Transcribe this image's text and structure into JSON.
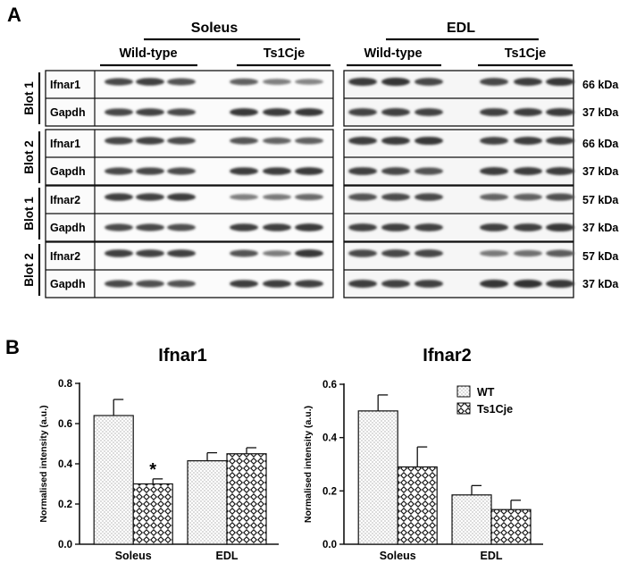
{
  "panel_a": {
    "letter": "A",
    "groups": [
      {
        "name": "Soleus",
        "subgroups": [
          "Wild-type",
          "Ts1Cje"
        ]
      },
      {
        "name": "EDL",
        "subgroups": [
          "Wild-type",
          "Ts1Cje"
        ]
      }
    ],
    "blocks": [
      {
        "blot": "Blot 1",
        "rows": [
          {
            "protein": "Ifnar1",
            "kda": "66 kDa"
          },
          {
            "protein": "Gapdh",
            "kda": "37 kDa"
          }
        ]
      },
      {
        "blot": "Blot 2",
        "rows": [
          {
            "protein": "Ifnar1",
            "kda": "66 kDa"
          },
          {
            "protein": "Gapdh",
            "kda": "37 kDa"
          }
        ]
      },
      {
        "blot": "Blot 1",
        "rows": [
          {
            "protein": "Ifnar2",
            "kda": "57 kDa"
          },
          {
            "protein": "Gapdh",
            "kda": "37 kDa"
          }
        ]
      },
      {
        "blot": "Blot 2",
        "rows": [
          {
            "protein": "Ifnar2",
            "kda": "57 kDa"
          },
          {
            "protein": "Gapdh",
            "kda": "37 kDa"
          }
        ]
      }
    ],
    "band_intensity": [
      [
        [
          0.78,
          0.85,
          0.72,
          0.62,
          0.42,
          0.38
        ],
        [
          0.8,
          0.82,
          0.78,
          0.9,
          0.88,
          0.9
        ]
      ],
      [
        [
          0.8,
          0.82,
          0.76,
          0.7,
          0.6,
          0.62
        ],
        [
          0.78,
          0.8,
          0.76,
          0.86,
          0.86,
          0.88
        ]
      ],
      [
        [
          0.85,
          0.82,
          0.86,
          0.42,
          0.46,
          0.56
        ],
        [
          0.76,
          0.78,
          0.74,
          0.85,
          0.85,
          0.88
        ]
      ],
      [
        [
          0.85,
          0.82,
          0.84,
          0.72,
          0.45,
          0.9
        ],
        [
          0.78,
          0.74,
          0.72,
          0.86,
          0.86,
          0.84
        ]
      ]
    ],
    "band_intensity_edl": [
      [
        [
          0.88,
          0.92,
          0.8,
          0.8,
          0.86,
          0.9
        ],
        [
          0.82,
          0.85,
          0.82,
          0.84,
          0.86,
          0.88
        ]
      ],
      [
        [
          0.86,
          0.88,
          0.9,
          0.82,
          0.86,
          0.86
        ],
        [
          0.84,
          0.8,
          0.72,
          0.86,
          0.86,
          0.86
        ]
      ],
      [
        [
          0.72,
          0.76,
          0.78,
          0.6,
          0.62,
          0.74
        ],
        [
          0.82,
          0.84,
          0.82,
          0.84,
          0.84,
          0.9
        ]
      ],
      [
        [
          0.78,
          0.8,
          0.8,
          0.46,
          0.52,
          0.66
        ],
        [
          0.86,
          0.84,
          0.84,
          0.92,
          0.94,
          0.9
        ]
      ]
    ]
  },
  "panel_b": {
    "letter": "B",
    "legend": [
      {
        "label": "WT",
        "pattern": "dots"
      },
      {
        "label": "Ts1Cje",
        "pattern": "checker"
      }
    ],
    "significance_marker": "*"
  },
  "chart_data": [
    {
      "type": "bar",
      "title": "Ifnar1",
      "xlabel": "",
      "ylabel": "Normalised intensity  (a.u.)",
      "categories": [
        "Soleus",
        "EDL"
      ],
      "ylim": [
        0,
        0.8
      ],
      "yticks": [
        "0.0",
        "0.2",
        "0.4",
        "0.6",
        "0.8"
      ],
      "series": [
        {
          "name": "WT",
          "values": [
            0.64,
            0.415
          ],
          "errors": [
            0.08,
            0.04
          ]
        },
        {
          "name": "Ts1Cje",
          "values": [
            0.3,
            0.45
          ],
          "errors": [
            0.025,
            0.03
          ]
        }
      ],
      "annotations": [
        {
          "category": "Soleus",
          "series": "Ts1Cje",
          "text": "*"
        }
      ]
    },
    {
      "type": "bar",
      "title": "Ifnar2",
      "xlabel": "",
      "ylabel": "Normalised intensity  (a.u.)",
      "categories": [
        "Soleus",
        "EDL"
      ],
      "ylim": [
        0,
        0.6
      ],
      "yticks": [
        "0.0",
        "0.2",
        "0.4",
        "0.6"
      ],
      "series": [
        {
          "name": "WT",
          "values": [
            0.5,
            0.185
          ],
          "errors": [
            0.06,
            0.035
          ]
        },
        {
          "name": "Ts1Cje",
          "values": [
            0.29,
            0.13
          ],
          "errors": [
            0.075,
            0.035
          ]
        }
      ],
      "legend": "top-right"
    }
  ]
}
